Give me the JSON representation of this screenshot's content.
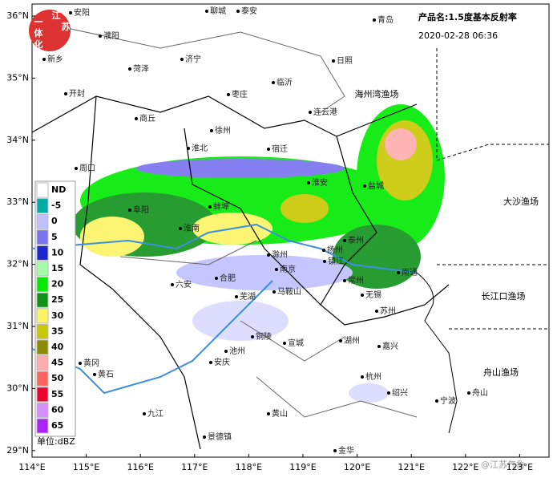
{
  "header": {
    "product": "产品名:1.5度基本反射率",
    "time": "2020-02-28 06:36"
  },
  "logo": {
    "chars": [
      "江",
      "苏",
      "一",
      "体",
      "化"
    ]
  },
  "lat_labels": [
    "36°N",
    "35°N",
    "34°N",
    "33°N",
    "32°N",
    "31°N",
    "30°N",
    "29°N"
  ],
  "lon_labels": [
    "114°E",
    "115°E",
    "116°E",
    "117°E",
    "118°E",
    "119°E",
    "120°E",
    "121°E",
    "122°E",
    "123°E"
  ],
  "legend": {
    "items": [
      {
        "label": "ND",
        "color": "#ffffff"
      },
      {
        "label": "-5",
        "color": "#00aca4"
      },
      {
        "label": "0",
        "color": "#c0c0fe"
      },
      {
        "label": "5",
        "color": "#7a72ee"
      },
      {
        "label": "10",
        "color": "#1e26d0"
      },
      {
        "label": "15",
        "color": "#a6fca8"
      },
      {
        "label": "20",
        "color": "#00ea00"
      },
      {
        "label": "25",
        "color": "#10921a"
      },
      {
        "label": "30",
        "color": "#fcf464"
      },
      {
        "label": "35",
        "color": "#c8c802"
      },
      {
        "label": "40",
        "color": "#8c8c00"
      },
      {
        "label": "45",
        "color": "#feacac"
      },
      {
        "label": "50",
        "color": "#fe645c"
      },
      {
        "label": "55",
        "color": "#ee0230"
      },
      {
        "label": "60",
        "color": "#d48efe"
      },
      {
        "label": "65",
        "color": "#aa24fa"
      }
    ],
    "unit": "单位:dBZ"
  },
  "cities": [
    "安阳",
    "聊城",
    "泰安",
    "青岛",
    "濮阳",
    "济宁",
    "新乡",
    "菏泽",
    "临沂",
    "日照",
    "开封",
    "枣庄",
    "商丘",
    "连云港",
    "徐州",
    "周口",
    "淮北",
    "宿迁",
    "淮安",
    "盐城",
    "阜阳",
    "蚌埠",
    "淮南",
    "扬州",
    "泰州",
    "南通",
    "六安",
    "合肥",
    "滁州",
    "南京",
    "镇江",
    "常州",
    "无锡",
    "苏州",
    "芜湖",
    "马鞍山",
    "铜陵",
    "宣城",
    "湖州",
    "嘉兴",
    "安庆",
    "池州",
    "黄冈",
    "黄石",
    "九江",
    "杭州",
    "黄山",
    "景德镇",
    "金华",
    "绍兴",
    "宁波",
    "舟山"
  ],
  "sea_areas": [
    "大沙渔场",
    "长江口渔场",
    "舟山渔场",
    "海州湾渔场"
  ],
  "watermark": "@江苏气象"
}
